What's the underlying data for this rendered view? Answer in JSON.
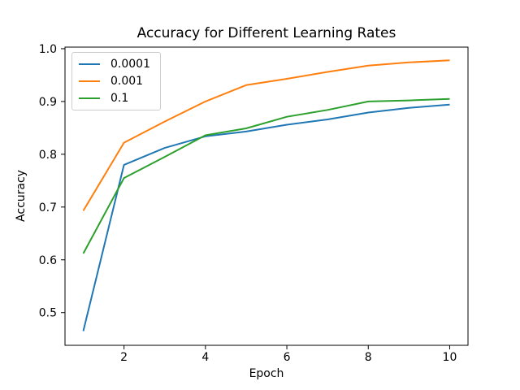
{
  "chart_data": {
    "type": "line",
    "title": "Accuracy for Different Learning Rates",
    "xlabel": "Epoch",
    "ylabel": "Accuracy",
    "x": [
      1,
      2,
      3,
      4,
      5,
      6,
      7,
      8,
      9,
      10
    ],
    "series": [
      {
        "name": "0.0001",
        "color": "#1f77b4",
        "values": [
          0.465,
          0.78,
          0.812,
          0.834,
          0.843,
          0.856,
          0.866,
          0.879,
          0.888,
          0.894
        ]
      },
      {
        "name": "0.001",
        "color": "#ff7f0e",
        "values": [
          0.693,
          0.822,
          0.862,
          0.9,
          0.931,
          0.943,
          0.956,
          0.968,
          0.974,
          0.978
        ]
      },
      {
        "name": "0.1",
        "color": "#2ca02c",
        "values": [
          0.612,
          0.755,
          0.795,
          0.836,
          0.849,
          0.871,
          0.884,
          0.9,
          0.902,
          0.905
        ]
      }
    ],
    "xticks": [
      2,
      4,
      6,
      8,
      10
    ],
    "yticks": [
      0.5,
      0.6,
      0.7,
      0.8,
      0.9,
      1.0
    ],
    "xlim": [
      0.55,
      10.45
    ],
    "ylim": [
      0.438,
      1.003
    ],
    "grid": false,
    "legend_position": "upper left",
    "background": "#ffffff",
    "spine_color": "#000000",
    "text_color": "#000000"
  }
}
